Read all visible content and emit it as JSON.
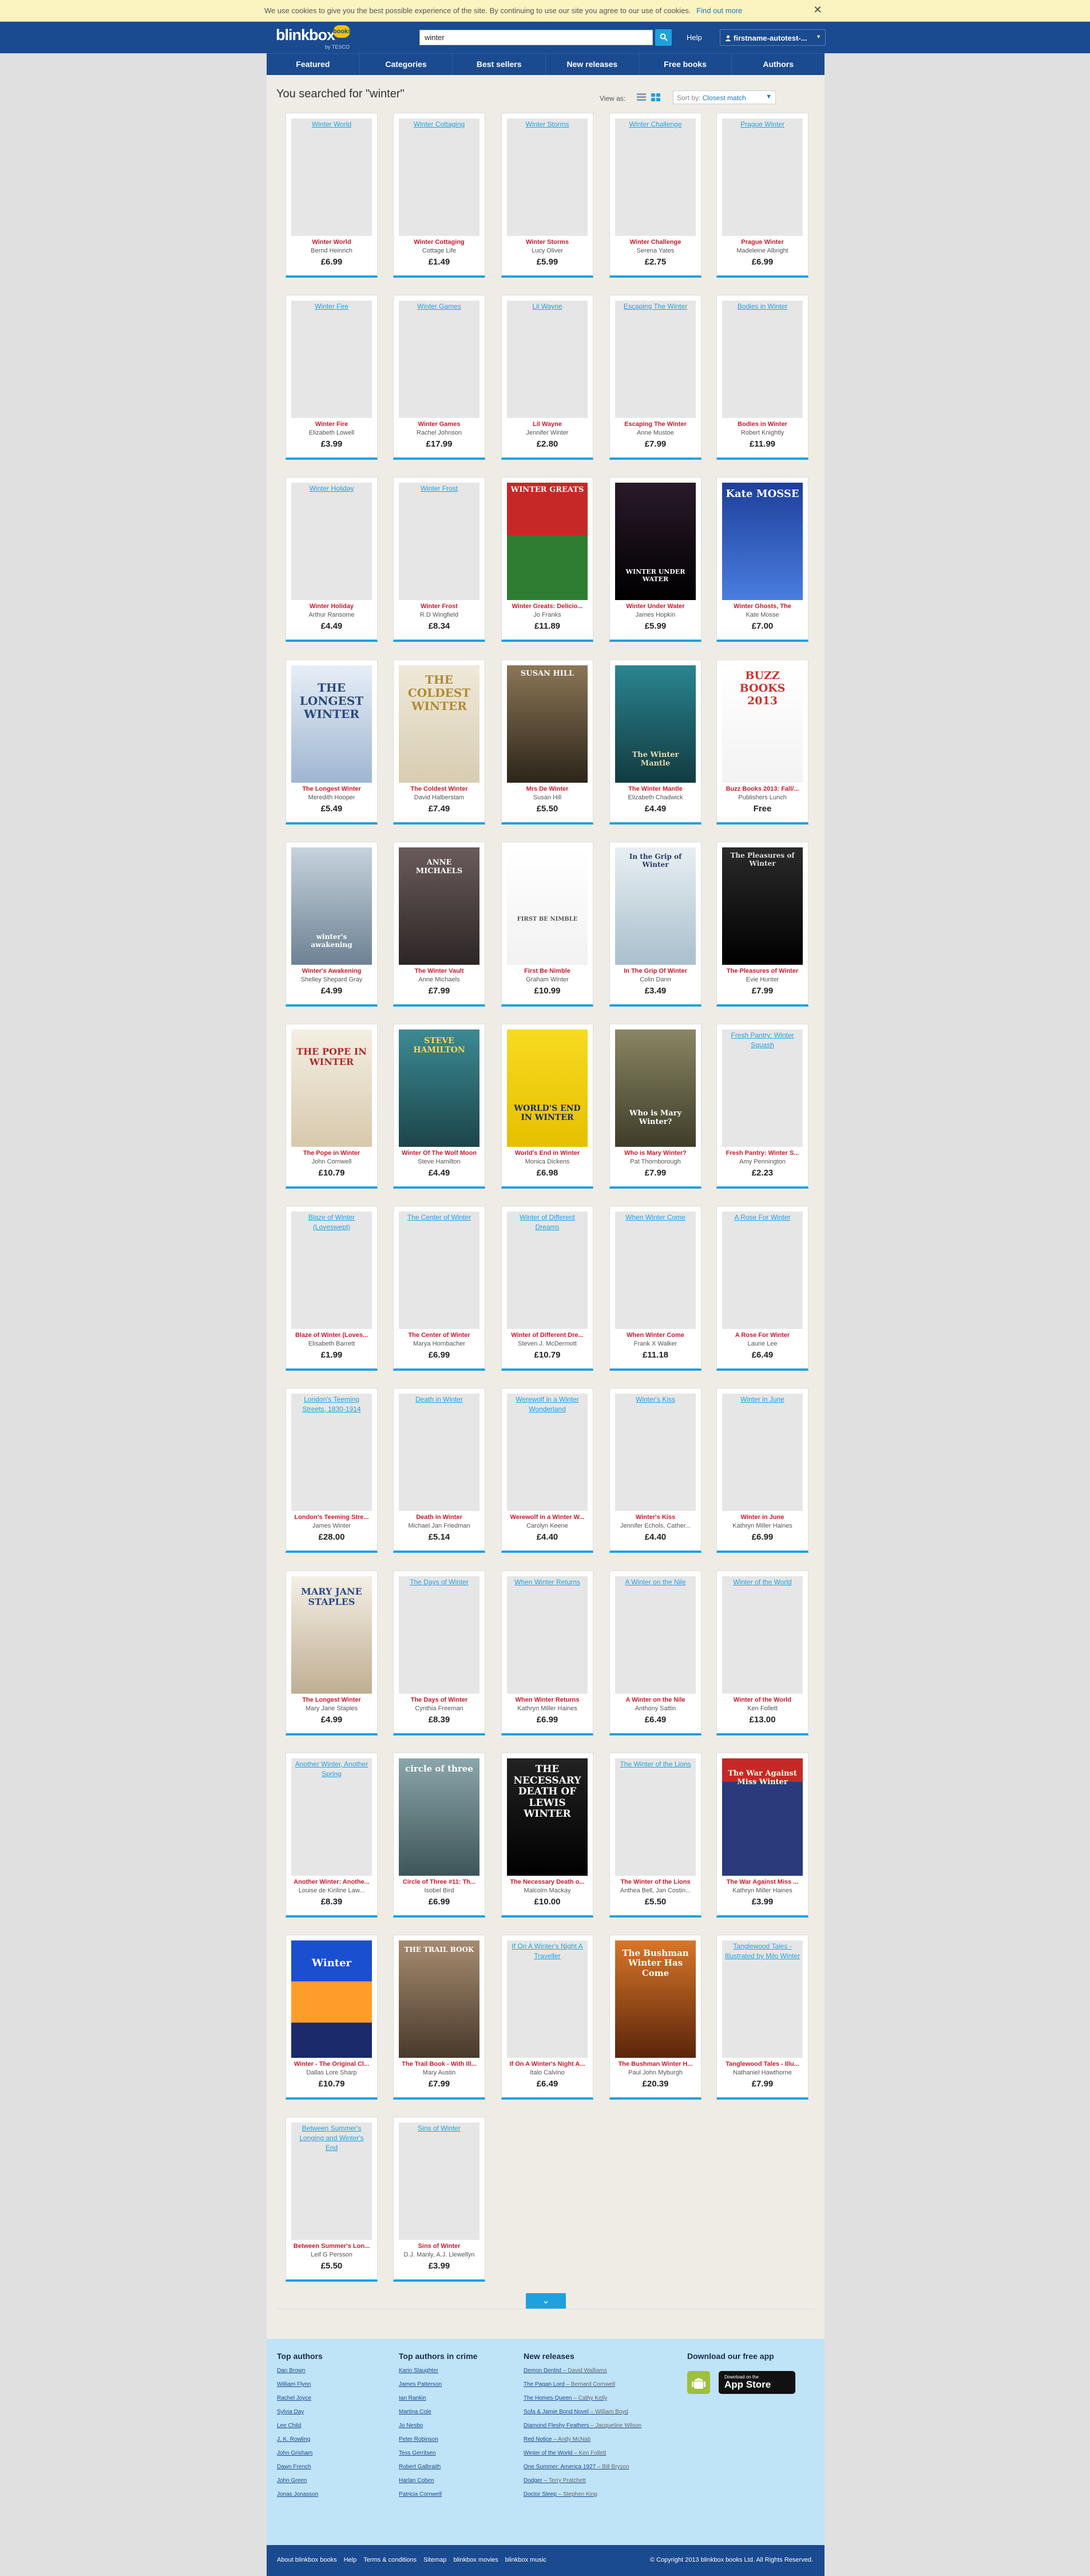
{
  "cookie": {
    "message": "We use cookies to give you the best possible experience of the site. By continuing to use our site you agree to our use of cookies.",
    "link": "Find out more",
    "close": "✕"
  },
  "header": {
    "logo": "blinkbox",
    "logo_badge": "books",
    "logo_sub": "by TESCO",
    "search_value": "winter",
    "help": "Help",
    "account": "firstname-autotest-..."
  },
  "nav": [
    "Featured",
    "Categories",
    "Best sellers",
    "New releases",
    "Free books",
    "Authors"
  ],
  "results": {
    "title": "You searched for \"winter\"",
    "view_as": "View as:",
    "sort_label": "Sort by:",
    "sort_value": "Closest match"
  },
  "books": [
    {
      "title": "Winter World",
      "author": "Bernd Heinrich",
      "price": "£6.99",
      "ph": "Winter World"
    },
    {
      "title": "Winter Cottaging",
      "author": "Cottage Life",
      "price": "£1.49",
      "ph": "Winter Cottaging"
    },
    {
      "title": "Winter Storms",
      "author": "Lucy Oliver",
      "price": "£5.99",
      "ph": "Winter Storms"
    },
    {
      "title": "Winter Challenge",
      "author": "Serena Yates",
      "price": "£2.75",
      "ph": "Winter Challenge"
    },
    {
      "title": "Prague Winter",
      "author": "Madeleine Albright",
      "price": "£6.99",
      "ph": "Prague Winter"
    },
    {
      "title": "Winter Fire",
      "author": "Elizabeth Lowell",
      "price": "£3.99",
      "ph": "Winter Fire"
    },
    {
      "title": "Winter Games",
      "author": "Rachel Johnson",
      "price": "£17.99",
      "ph": "Winter Games"
    },
    {
      "title": "Lil Wayne",
      "author": "Jennifer Winter",
      "price": "£2.80",
      "ph": "Lil Wayne"
    },
    {
      "title": "Escaping The Winter",
      "author": "Anne Mustoe",
      "price": "£7.99",
      "ph": "Escaping The Winter"
    },
    {
      "title": "Bodies in Winter",
      "author": "Robert Knightly",
      "price": "£11.99",
      "ph": "Bodies in Winter"
    },
    {
      "title": "Winter Holiday",
      "author": "Arthur Ransome",
      "price": "£4.49",
      "ph": "Winter Holiday"
    },
    {
      "title": "Winter Frost",
      "author": "R.D Wingfield",
      "price": "£8.34",
      "ph": "Winter Frost"
    },
    {
      "title": "Winter Greats: Delicio...",
      "author": "Jo Franks",
      "price": "£11.89",
      "cover": "WINTER GREATS"
    },
    {
      "title": "Winter Under Water",
      "author": "James Hopkin",
      "price": "£5.99",
      "cover": "WINTER UNDER WATER"
    },
    {
      "title": "Winter Ghosts, The",
      "author": "Kate Mosse",
      "price": "£7.00",
      "cover": "Kate MOSSE"
    },
    {
      "title": "The Longest Winter",
      "author": "Meredith Hooper",
      "price": "£5.49",
      "cover": "THE LONGEST WINTER"
    },
    {
      "title": "The Coldest Winter",
      "author": "David Halberstam",
      "price": "£7.49",
      "cover": "THE COLDEST WINTER"
    },
    {
      "title": "Mrs De Winter",
      "author": "Susan Hill",
      "price": "£5.50",
      "cover": "SUSAN HILL"
    },
    {
      "title": "The Winter Mantle",
      "author": "Elizabeth Chadwick",
      "price": "£4.49",
      "cover": "The Winter Mantle"
    },
    {
      "title": "Buzz Books 2013: Fall/...",
      "author": "Publishers Lunch",
      "price": "Free",
      "cover": "BUZZ BOOKS 2013"
    },
    {
      "title": "Winter's Awakening",
      "author": "Shelley Shepard Gray",
      "price": "£4.99",
      "cover": "winter's awakening"
    },
    {
      "title": "The Winter Vault",
      "author": "Anne Michaels",
      "price": "£7.99",
      "cover": "ANNE MICHAELS"
    },
    {
      "title": "First Be Nimble",
      "author": "Graham Winter",
      "price": "£10.99",
      "cover": "FIRST BE NIMBLE"
    },
    {
      "title": "In The Grip Of Winter",
      "author": "Colin Dann",
      "price": "£3.49",
      "cover": "In the Grip of Winter"
    },
    {
      "title": "The Pleasures of Winter",
      "author": "Evie Hunter",
      "price": "£7.99",
      "cover": "The Pleasures of Winter"
    },
    {
      "title": "The Pope in Winter",
      "author": "John Cornwell",
      "price": "£10.79",
      "cover": "THE POPE IN WINTER"
    },
    {
      "title": "Winter Of The Wolf Moon",
      "author": "Steve Hamilton",
      "price": "£4.49",
      "cover": "STEVE HAMILTON"
    },
    {
      "title": "World's End in Winter",
      "author": "Monica Dickens",
      "price": "£6.98",
      "cover": "WORLD'S END IN WINTER"
    },
    {
      "title": "Who is Mary Winter?",
      "author": "Pat Thornborough",
      "price": "£7.99",
      "cover": "Who is Mary Winter?"
    },
    {
      "title": "Fresh Pantry: Winter S...",
      "author": "Amy Pennington",
      "price": "£2.23",
      "ph": "Fresh Pantry: Winter Squash"
    },
    {
      "title": "Blaze of Winter (Loves...",
      "author": "Elisabeth Barrett",
      "price": "£1.99",
      "ph": "Blaze of Winter (Loveswept)"
    },
    {
      "title": "The Center of Winter",
      "author": "Marya Hornbacher",
      "price": "£6.99",
      "ph": "The Center of Winter"
    },
    {
      "title": "Winter of Different Dre...",
      "author": "Steven J. McDermott",
      "price": "£10.79",
      "ph": "Winter of Different Dreams"
    },
    {
      "title": "When Winter Come",
      "author": "Frank X Walker",
      "price": "£11.18",
      "ph": "When Winter Come"
    },
    {
      "title": "A Rose For Winter",
      "author": "Laurie Lee",
      "price": "£6.49",
      "ph": "A Rose For Winter"
    },
    {
      "title": "London's Teeming Stre...",
      "author": "James Winter",
      "price": "£28.00",
      "ph": "London's Teeming Streets, 1830-1914"
    },
    {
      "title": "Death in Winter",
      "author": "Michael Jan Friedman",
      "price": "£5.14",
      "ph": "Death in Winter"
    },
    {
      "title": "Werewolf in a Winter W...",
      "author": "Carolyn Keene",
      "price": "£4.40",
      "ph": "Werewolf in a Winter Wonderland"
    },
    {
      "title": "Winter's Kiss",
      "author": "Jennifer Echols, Cather...",
      "price": "£4.40",
      "ph": "Winter's Kiss"
    },
    {
      "title": "Winter in June",
      "author": "Kathryn Miller Haines",
      "price": "£6.99",
      "ph": "Winter in June"
    },
    {
      "title": "The Longest Winter",
      "author": "Mary Jane Staples",
      "price": "£4.99",
      "cover": "MARY JANE STAPLES"
    },
    {
      "title": "The Days of Winter",
      "author": "Cynthia Freeman",
      "price": "£8.39",
      "ph": "The Days of Winter"
    },
    {
      "title": "When Winter Returns",
      "author": "Kathryn Miller Haines",
      "price": "£6.99",
      "ph": "When Winter Returns"
    },
    {
      "title": "A Winter on the Nile",
      "author": "Anthony Sattin",
      "price": "£6.49",
      "ph": "A Winter on the Nile"
    },
    {
      "title": "Winter of the World",
      "author": "Ken Follett",
      "price": "£13.00",
      "ph": "Winter of the World"
    },
    {
      "title": "Another Winter: Anothe...",
      "author": "Louise de Kiriline Law...",
      "price": "£8.39",
      "ph": "Another Winter, Another Spring"
    },
    {
      "title": "Circle of Three #11: Th...",
      "author": "Isobel Bird",
      "price": "£6.99",
      "cover": "circle of three"
    },
    {
      "title": "The Necessary Death o...",
      "author": "Malcolm Mackay",
      "price": "£10.00",
      "cover": "THE NECESSARY DEATH OF LEWIS WINTER"
    },
    {
      "title": "The Winter of the Lions",
      "author": "Anthea Bell, Jan Costin...",
      "price": "£5.50",
      "ph": "The Winter of the Lions"
    },
    {
      "title": "The War Against Miss ...",
      "author": "Kathryn Miller Haines",
      "price": "£3.99",
      "cover": "The War Against Miss Winter"
    },
    {
      "title": "Winter - The Original Cl...",
      "author": "Dallas Lore Sharp",
      "price": "£10.79",
      "cover": "Winter"
    },
    {
      "title": "The Trail Book - With Ill...",
      "author": "Mary Austin",
      "price": "£7.99",
      "cover": "THE TRAIL BOOK"
    },
    {
      "title": "If On A Winter's Night A...",
      "author": "Italo Calvino",
      "price": "£6.49",
      "ph": "If On A Winter's Night A Traveller"
    },
    {
      "title": "The Bushman Winter H...",
      "author": "Paul John Myburgh",
      "price": "£20.39",
      "cover": "The Bushman Winter Has Come"
    },
    {
      "title": "Tanglewood Tales - Illu...",
      "author": "Nathaniel Hawthorne",
      "price": "£7.99",
      "ph": "Tanglewood Tales - Illustrated by Milo Winter"
    },
    {
      "title": "Between Summer's Lon...",
      "author": "Leif G Persson",
      "price": "£5.50",
      "ph": "Between Summer's Longing and Winter's End"
    },
    {
      "title": "Sins of Winter",
      "author": "D.J. Manly, A.J. Llewellyn",
      "price": "£3.99",
      "ph": "Sins of Winter"
    }
  ],
  "more_button": "⌄",
  "footer": {
    "cols": [
      {
        "title": "Top authors",
        "links": [
          {
            "name": "Dan Brown"
          },
          {
            "name": "William Flynn"
          },
          {
            "name": "Rachel Joyce"
          },
          {
            "name": "Sylvia Day"
          },
          {
            "name": "Lee Child"
          },
          {
            "name": "J. K. Rowling"
          },
          {
            "name": "John Grisham"
          },
          {
            "name": "Dawn French"
          },
          {
            "name": "John Green"
          },
          {
            "name": "Jonas Jonasson"
          }
        ]
      },
      {
        "title": "Top authors in crime",
        "links": [
          {
            "name": "Karin Slaughter"
          },
          {
            "name": "James Patterson"
          },
          {
            "name": "Ian Rankin"
          },
          {
            "name": "Martina Cole"
          },
          {
            "name": "Jo Nesbo"
          },
          {
            "name": "Peter Robinson"
          },
          {
            "name": "Tess Gerritsen"
          },
          {
            "name": "Robert Galbraith"
          },
          {
            "name": "Harlan Coben"
          },
          {
            "name": "Patricia Cornwell"
          }
        ]
      },
      {
        "title": "New releases",
        "links": [
          {
            "name": "Demon Dentist",
            "by": "David Walliams"
          },
          {
            "name": "The Pagan Lord",
            "by": "Bernard Cornwell"
          },
          {
            "name": "The Homes Queen",
            "by": "Cathy Kelly"
          },
          {
            "name": "Sofa & Jamie Bond Novel",
            "by": "William Boyd"
          },
          {
            "name": "Diamond Fleshy Feathers",
            "by": "Jacqueline Wilson"
          },
          {
            "name": "Red Notice",
            "by": "Andy McNab"
          },
          {
            "name": "Winter of the World",
            "by": "Ken Follett"
          },
          {
            "name": "One Summer: America 1927",
            "by": "Bill Bryson"
          },
          {
            "name": "Dodger",
            "by": "Terry Pratchett"
          },
          {
            "name": "Doctor Sleep",
            "by": "Stephen King"
          }
        ]
      }
    ],
    "app_title": "Download our free app",
    "app_store_small": "Download on the",
    "app_store_big": "App Store",
    "bottom_links": [
      "About blinkbox books",
      "Help",
      "Terms & conditions",
      "Sitemap",
      "blinkbox movies",
      "blinkbox music"
    ],
    "copyright": "© Copyright 2013 blinkbox books Ltd. All Rights Reserved."
  }
}
